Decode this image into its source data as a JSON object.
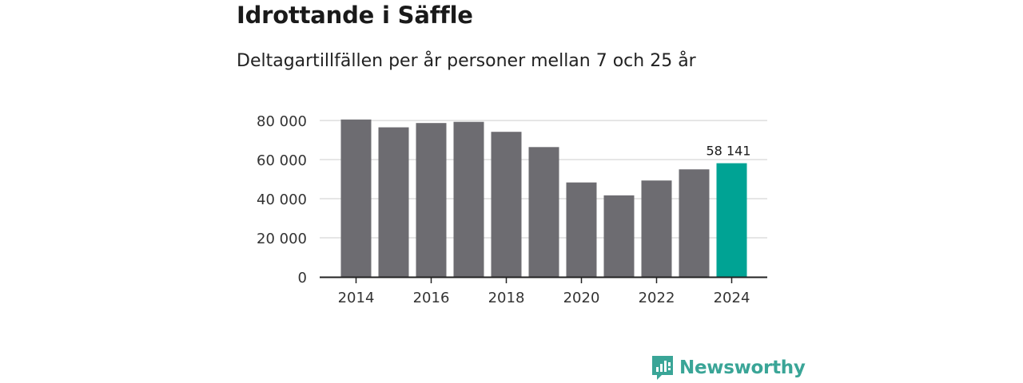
{
  "chart_data": {
    "type": "bar",
    "title": "Idrottande i Säffle",
    "subtitle": "Deltagartillfällen per år personer mellan 7 och 25 år",
    "categories": [
      "2014",
      "2015",
      "2016",
      "2017",
      "2018",
      "2019",
      "2020",
      "2021",
      "2022",
      "2023",
      "2024"
    ],
    "values": [
      80500,
      76500,
      78700,
      79300,
      74200,
      66400,
      48300,
      41700,
      49300,
      55000,
      58141
    ],
    "x_tick_labels": [
      "2014",
      "2016",
      "2018",
      "2020",
      "2022",
      "2024"
    ],
    "y_ticks": [
      {
        "value": 0,
        "label": "0"
      },
      {
        "value": 20000,
        "label": "20 000"
      },
      {
        "value": 40000,
        "label": "40 000"
      },
      {
        "value": 60000,
        "label": "60 000"
      },
      {
        "value": 80000,
        "label": "80 000"
      }
    ],
    "ylim": [
      0,
      80000
    ],
    "highlight": {
      "category": "2024",
      "label": "58 141"
    },
    "colors": {
      "bar": "#6d6c71",
      "highlight": "#00a394",
      "grid": "#dddddd",
      "axis": "#222222"
    },
    "grid": true,
    "xlabel": "",
    "ylabel": ""
  },
  "brand": {
    "name": "Newsworthy",
    "color": "#3aa597",
    "icon": "newsworthy-logo-icon"
  }
}
